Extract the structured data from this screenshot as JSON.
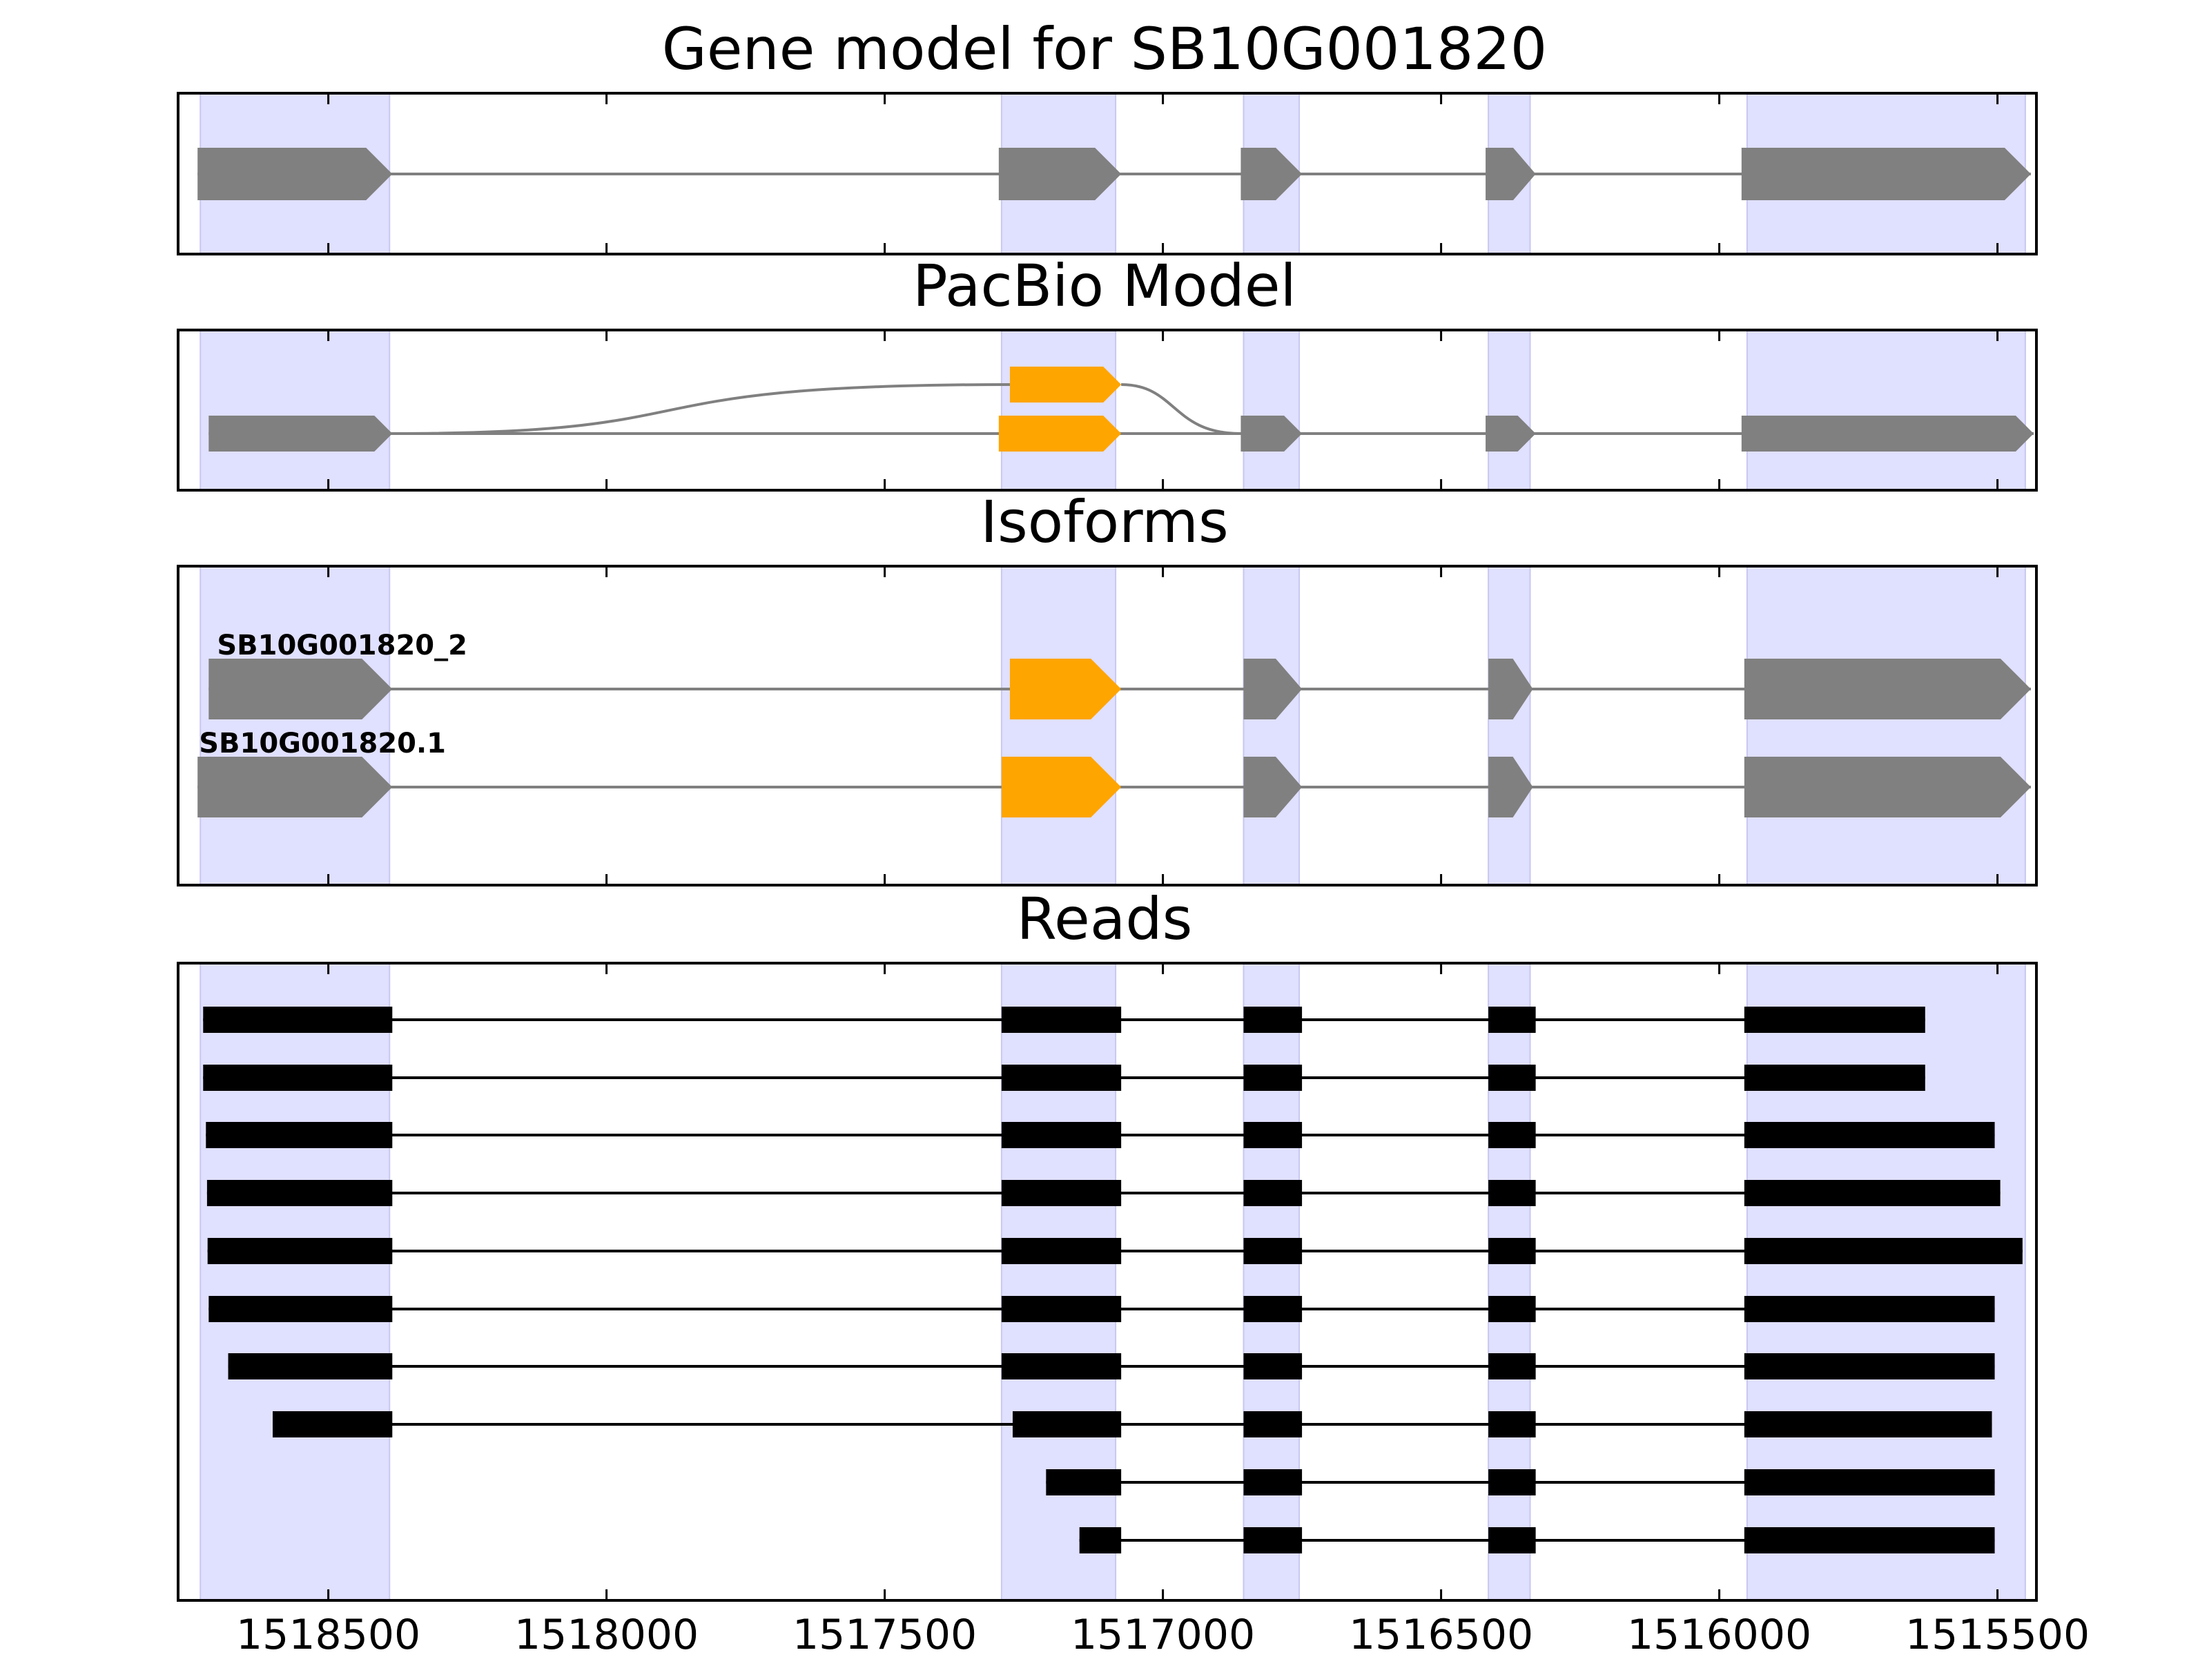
{
  "chart_data": {
    "type": "gene-structure",
    "x_axis": {
      "reversed": true,
      "xlim": [
        1518770,
        1515430
      ],
      "ticks": [
        1518500,
        1518000,
        1517500,
        1517000,
        1516500,
        1516000,
        1515500
      ],
      "tick_labels": [
        "1518500",
        "1518000",
        "1517500",
        "1517000",
        "1516500",
        "1516000",
        "1515500"
      ]
    },
    "colors": {
      "exon": "#808080",
      "alt_exon": "#ffa500",
      "read": "#000000",
      "highlight": "#e0e0ff",
      "intron": "#808080"
    },
    "exon_regions": [
      [
        1518730,
        1518390
      ],
      [
        1517290,
        1517085
      ],
      [
        1516855,
        1516755
      ],
      [
        1516415,
        1516340
      ],
      [
        1515950,
        1515450
      ]
    ],
    "panels": [
      {
        "id": "gene-model",
        "title": "Gene model for SB10G001820",
        "tracks": [
          {
            "exons": [
              {
                "start": 1518735,
                "end": 1518385,
                "color": "exon"
              },
              {
                "start": 1517295,
                "end": 1517075,
                "color": "exon"
              },
              {
                "start": 1516860,
                "end": 1516750,
                "color": "exon"
              },
              {
                "start": 1516420,
                "end": 1516330,
                "color": "exon"
              },
              {
                "start": 1515960,
                "end": 1515440,
                "color": "exon"
              }
            ]
          }
        ]
      },
      {
        "id": "pacbio-model",
        "title": "PacBio Model",
        "tracks": [
          {
            "exons": [
              {
                "start": 1518715,
                "end": 1518385,
                "color": "exon"
              },
              {
                "start": 1517295,
                "end": 1517075,
                "color": "alt_exon"
              },
              {
                "start": 1516860,
                "end": 1516750,
                "color": "exon"
              },
              {
                "start": 1516420,
                "end": 1516330,
                "color": "exon"
              },
              {
                "start": 1515960,
                "end": 1515435,
                "color": "exon"
              }
            ]
          }
        ],
        "alt_branch": {
          "start": 1517275,
          "end": 1517075,
          "color": "alt_exon"
        }
      },
      {
        "id": "isoforms",
        "title": "Isoforms",
        "tracks": [
          {
            "label": "SB10G001820_2",
            "exons": [
              {
                "start": 1518715,
                "end": 1518385,
                "color": "exon"
              },
              {
                "start": 1517275,
                "end": 1517075,
                "color": "alt_exon"
              },
              {
                "start": 1516855,
                "end": 1516750,
                "color": "exon"
              },
              {
                "start": 1516415,
                "end": 1516335,
                "color": "exon"
              },
              {
                "start": 1515955,
                "end": 1515440,
                "color": "exon"
              }
            ]
          },
          {
            "label": "SB10G001820.1",
            "exons": [
              {
                "start": 1518735,
                "end": 1518385,
                "color": "exon"
              },
              {
                "start": 1517290,
                "end": 1517075,
                "color": "alt_exon"
              },
              {
                "start": 1516855,
                "end": 1516750,
                "color": "exon"
              },
              {
                "start": 1516415,
                "end": 1516335,
                "color": "exon"
              },
              {
                "start": 1515955,
                "end": 1515440,
                "color": "exon"
              }
            ]
          }
        ]
      },
      {
        "id": "reads",
        "title": "Reads",
        "tracks": [
          {
            "exons": [
              [
                1518725,
                1518385
              ],
              [
                1517290,
                1517075
              ],
              [
                1516855,
                1516750
              ],
              [
                1516415,
                1516330
              ],
              [
                1515955,
                1515630
              ]
            ]
          },
          {
            "exons": [
              [
                1518725,
                1518385
              ],
              [
                1517290,
                1517075
              ],
              [
                1516855,
                1516750
              ],
              [
                1516415,
                1516330
              ],
              [
                1515955,
                1515630
              ]
            ]
          },
          {
            "exons": [
              [
                1518720,
                1518385
              ],
              [
                1517290,
                1517075
              ],
              [
                1516855,
                1516750
              ],
              [
                1516415,
                1516330
              ],
              [
                1515955,
                1515505
              ]
            ]
          },
          {
            "exons": [
              [
                1518718,
                1518385
              ],
              [
                1517290,
                1517075
              ],
              [
                1516855,
                1516750
              ],
              [
                1516415,
                1516330
              ],
              [
                1515955,
                1515495
              ]
            ]
          },
          {
            "exons": [
              [
                1518717,
                1518385
              ],
              [
                1517290,
                1517075
              ],
              [
                1516855,
                1516750
              ],
              [
                1516415,
                1516330
              ],
              [
                1515955,
                1515455
              ]
            ]
          },
          {
            "exons": [
              [
                1518715,
                1518385
              ],
              [
                1517290,
                1517075
              ],
              [
                1516855,
                1516750
              ],
              [
                1516415,
                1516330
              ],
              [
                1515955,
                1515505
              ]
            ]
          },
          {
            "exons": [
              [
                1518680,
                1518385
              ],
              [
                1517290,
                1517075
              ],
              [
                1516855,
                1516750
              ],
              [
                1516415,
                1516330
              ],
              [
                1515955,
                1515505
              ]
            ]
          },
          {
            "exons": [
              [
                1518600,
                1518385
              ],
              [
                1517270,
                1517075
              ],
              [
                1516855,
                1516750
              ],
              [
                1516415,
                1516330
              ],
              [
                1515955,
                1515510
              ]
            ]
          },
          {
            "exons": [
              [
                1517210,
                1517075
              ],
              [
                1516855,
                1516750
              ],
              [
                1516415,
                1516330
              ],
              [
                1515955,
                1515505
              ]
            ]
          },
          {
            "exons": [
              [
                1517150,
                1517075
              ],
              [
                1516855,
                1516750
              ],
              [
                1516415,
                1516330
              ],
              [
                1515955,
                1515505
              ]
            ]
          }
        ]
      }
    ]
  }
}
